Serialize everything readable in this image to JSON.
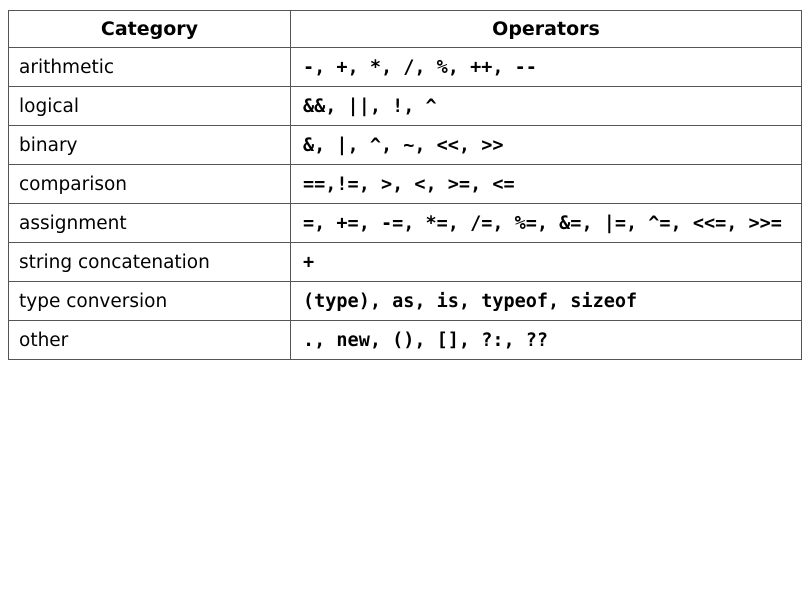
{
  "table": {
    "headers": {
      "category": "Category",
      "operators": "Operators"
    },
    "rows": [
      {
        "category": "arithmetic",
        "operators": "-, +, *, /, %, ++, --"
      },
      {
        "category": "logical",
        "operators": "&&, ||, !, ^"
      },
      {
        "category": "binary",
        "operators": "&, |, ^, ~, <<, >>"
      },
      {
        "category": "comparison",
        "operators": "==,!=, >, <, >=, <="
      },
      {
        "category": "assignment",
        "operators": "=, +=, -=, *=, /=, %=, &=, |=, ^=, <<=, >>="
      },
      {
        "category": "string concatenation",
        "operators": "+"
      },
      {
        "category": "type conversion",
        "operators": "(type), as, is, typeof, sizeof"
      },
      {
        "category": "other",
        "operators": "., new, (), [], ?:, ??"
      }
    ]
  },
  "colors": {
    "border": "#555555",
    "text": "#000000",
    "background": "#ffffff"
  }
}
